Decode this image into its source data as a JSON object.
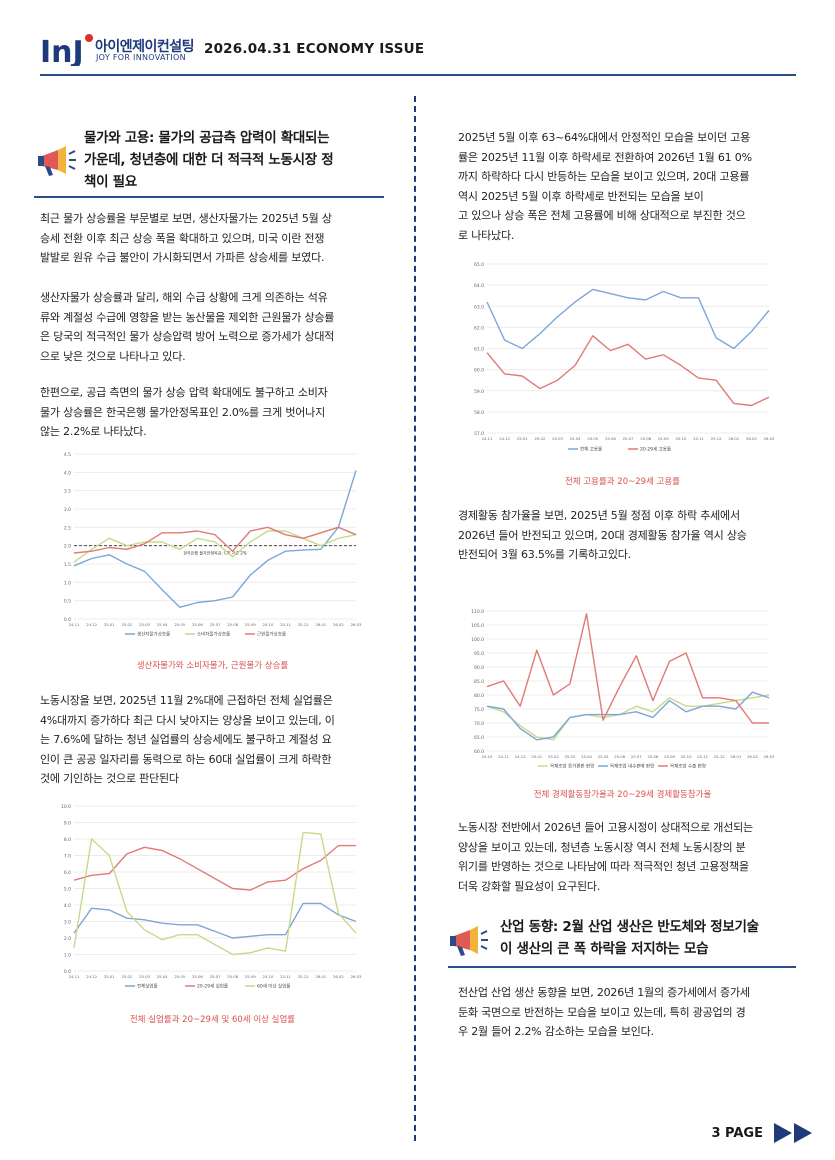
{
  "header": {
    "logo_mark": "InJ",
    "logo_kr": "아이엔제이컨설팅",
    "logo_en": "JOY FOR INNOVATION",
    "issue": "2026.04.31 ECONOMY ISSUE"
  },
  "left": {
    "section_title_lines": [
      "물가와 고용: 물가의 공급측 압력이 확대되는",
      "가운데, 청년층에 대한 더 적극적 노동시장 정",
      "책이 필요"
    ],
    "p1": [
      "최근 물가 상승률을 부문별로 보면, 생산자물가는 2025년 5월 상",
      "승세 전환 이후 최근 상승 폭을 확대하고 있으며, 미국 이란 전쟁",
      "발발로 원유 수급 불안이 가시화되면서 가파른 상승세를 보였다."
    ],
    "p2": [
      "생산자물가 상승률과 달리, 해외 수급 상황에 크게 의존하는 석유",
      "류와 계절성 수급에 영향을 받는 농산물을 제외한 근원물가 상승률",
      "은 당국의 적극적인 물가 상승압력 방어 노력으로 증가세가 상대적",
      "으로 낮은 것으로 나타나고 있다."
    ],
    "p3": [
      "한편으로, 공급 측면의 물가 상승 압력 확대에도 불구하고 소비자",
      "물가 상승률은 한국은행 물가안정목표인 2.0%를 크게 벗어나지",
      "않는 2.2%로 나타났다."
    ],
    "caption1": "생산자물가와 소비자물가, 근원물가 상승률",
    "p4": [
      "노동시장을 보면, 2025년 11월 2%대에 근접하던 전체 실업률은",
      "4%대까지 증가하다 최근 다시 낮아지는 양상을 보이고 있는데, 이",
      "는 7.6%에 달하는 청년 실업률의 상승세에도 불구하고 계절성 요",
      "인이 큰 공공 일자리를 동력으로 하는 60대 실업률이 크게 하락한",
      "것에 기인하는 것으로 판단된다"
    ],
    "caption2": "전체 실업률과 20~29세 및 60세 이상 실업률"
  },
  "right": {
    "p1": [
      "2025년 5월 이후 63~64%대에서 안정적인 모습을 보이던 고용",
      "률은 2025년 11월 이후 하락세로 전환하여 2026년 1월 61 0%",
      "까지 하락하다 다시 반등하는 모습을 보이고 있으며, 20대 고용률",
      "역시 2025년 5월 이후 하락세로 반전되는 모습을 보이",
      "고 있으나 상승 폭은 전체 고용률에 비해 상대적으로 부진한 것으",
      "로 나타났다."
    ],
    "caption3": "전체 고용률과 20~29세 고용률",
    "p2": [
      "경제활동 참가율을 보면, 2025년 5월 정점 이후 하락 추세에서",
      "2026년 들어 반전되고 있으며, 20대 경제활동 참가율 역시 상승",
      "반전되어 3월 63.5%를 기록하고있다."
    ],
    "caption4": "전체 경제활동참가율과 20~29세 경제활동참가율",
    "p3": [
      "노동시장 전반에서 2026년 들어 고용시정이 상대적으로 개선되는",
      "양상을 보이고 있는데, 청년층 노동시장 역시 전체 노동시장의 분",
      "위기를 반영하는 것으로 나타남에 따라 적극적인 청년 고용정책을",
      "더욱 강화할 필요성이 요구된다."
    ],
    "section_title_lines": [
      "산업 동향: 2월 산업 생산은 반도체와 정보기술",
      "이 생산의 큰 폭 하락을 저지하는 모습"
    ],
    "p4": [
      "전산업 산업 생산 동향을 보면, 2026년 1월의 증가세에서 증가세",
      "둔화 국면으로 반전하는 모습을 보이고 있는데, 특히 광공업의 경",
      "우 2월 들어 2.2% 감소하는 모습을 보인다."
    ]
  },
  "footer": {
    "page": "3 PAGE"
  },
  "chart_data": [
    {
      "type": "line",
      "categories": [
        "24.11",
        "24.12",
        "25.01",
        "25.02",
        "25.03",
        "25.04",
        "25.05",
        "25.06",
        "25.07",
        "25.08",
        "25.09",
        "25.10",
        "25.11",
        "25.12",
        "26.01",
        "26.02",
        "26.03"
      ],
      "ylim": [
        0,
        4.5
      ],
      "yticks": [
        "0.0",
        "0.5",
        "1.0",
        "1.5",
        "2.0",
        "2.5",
        "3.0",
        "3.5",
        "4.0",
        "4.5"
      ],
      "target": 2.0,
      "target_label": "한국은행 물가안정목표: CPI 기준 2%",
      "series": [
        {
          "name": "생산자물가상승률",
          "color": "#7ea6d8",
          "values": [
            1.45,
            1.65,
            1.75,
            1.5,
            1.3,
            0.8,
            0.32,
            0.45,
            0.5,
            0.6,
            1.2,
            1.6,
            1.85,
            1.88,
            1.9,
            2.5,
            4.05
          ]
        },
        {
          "name": "소비자물가상승률",
          "color": "#c8d98a",
          "values": [
            1.55,
            1.9,
            2.2,
            2.0,
            2.1,
            2.1,
            1.9,
            2.2,
            2.1,
            1.7,
            2.1,
            2.4,
            2.4,
            2.2,
            2.0,
            2.2,
            2.3
          ]
        },
        {
          "name": "근원물가상승률",
          "color": "#e07a76",
          "values": [
            1.8,
            1.85,
            1.95,
            1.9,
            2.05,
            2.35,
            2.35,
            2.4,
            2.3,
            1.85,
            2.4,
            2.5,
            2.3,
            2.2,
            2.35,
            2.5,
            2.3
          ]
        }
      ]
    },
    {
      "type": "line",
      "categories": [
        "24.11",
        "24.12",
        "25.01",
        "25.02",
        "25.03",
        "25.04",
        "25.05",
        "25.06",
        "25.07",
        "25.08",
        "25.09",
        "25.10",
        "25.11",
        "25.12",
        "26.01",
        "26.02",
        "26.03"
      ],
      "ylim": [
        0,
        10
      ],
      "yticks": [
        "0.0",
        "1.0",
        "2.0",
        "3.0",
        "4.0",
        "5.0",
        "6.0",
        "7.0",
        "8.0",
        "9.0",
        "10.0"
      ],
      "series": [
        {
          "name": "전체실업률",
          "color": "#7ea6d8",
          "values": [
            2.3,
            3.8,
            3.7,
            3.2,
            3.1,
            2.9,
            2.8,
            2.8,
            2.4,
            2.0,
            2.1,
            2.2,
            2.2,
            4.1,
            4.1,
            3.4,
            3.0
          ]
        },
        {
          "name": "20-29세 실업률",
          "color": "#e07a76",
          "values": [
            5.5,
            5.8,
            5.9,
            7.1,
            7.5,
            7.3,
            6.8,
            6.2,
            5.6,
            5.0,
            4.9,
            5.4,
            5.5,
            6.2,
            6.7,
            7.6,
            7.6
          ]
        },
        {
          "name": "60세 이상 실업률",
          "color": "#c8d98a",
          "values": [
            1.4,
            8.0,
            7.0,
            3.6,
            2.5,
            1.9,
            2.2,
            2.2,
            1.6,
            1.0,
            1.1,
            1.4,
            1.2,
            8.4,
            8.3,
            3.5,
            2.3
          ]
        }
      ]
    },
    {
      "type": "line",
      "categories": [
        "24.11",
        "24.12",
        "25.01",
        "25.02",
        "25.03",
        "25.04",
        "25.05",
        "25.06",
        "25.07",
        "25.08",
        "25.09",
        "25.10",
        "25.11",
        "25.12",
        "26.01",
        "26.02",
        "26.03"
      ],
      "ylim": [
        57,
        65
      ],
      "yticks": [
        "57.0",
        "58.0",
        "59.0",
        "60.0",
        "61.0",
        "62.0",
        "63.0",
        "64.0",
        "65.0"
      ],
      "series": [
        {
          "name": "전체 고용률",
          "color": "#7ea6d8",
          "values": [
            63.2,
            61.4,
            61.0,
            61.7,
            62.5,
            63.2,
            63.8,
            63.6,
            63.4,
            63.3,
            63.7,
            63.4,
            63.4,
            61.5,
            61.0,
            61.8,
            62.8
          ]
        },
        {
          "name": "20-29세 고용률",
          "color": "#e07a76",
          "values": [
            60.8,
            59.8,
            59.7,
            59.1,
            59.5,
            60.2,
            61.6,
            60.9,
            61.2,
            60.5,
            60.7,
            60.2,
            59.6,
            59.5,
            58.4,
            58.3,
            58.7
          ]
        }
      ]
    },
    {
      "type": "line",
      "categories": [
        "24.10",
        "24.11",
        "24.12",
        "25.01",
        "25.02",
        "25.03",
        "25.04",
        "25.05",
        "25.06",
        "25.07",
        "25.08",
        "25.09",
        "25.10",
        "25.11",
        "25.12",
        "26.01",
        "26.02",
        "26.03"
      ],
      "ylim": [
        60,
        110
      ],
      "yticks": [
        "60.0",
        "65.0",
        "70.0",
        "75.0",
        "80.0",
        "85.0",
        "90.0",
        "95.0",
        "100.0",
        "105.0",
        "110.0"
      ],
      "series": [
        {
          "name": "목재조업 증가편판 판량",
          "color": "#c8d98a",
          "values": [
            76,
            74,
            69,
            65,
            64,
            72,
            73,
            72,
            73,
            76,
            74,
            79,
            76,
            76,
            77,
            78,
            79,
            80
          ]
        },
        {
          "name": "목재조업 내수판매 판량",
          "color": "#7ea6d8",
          "values": [
            76,
            75,
            68,
            64,
            65,
            72,
            73,
            73,
            73,
            74,
            72,
            78,
            74,
            76,
            76,
            75,
            81,
            79
          ]
        },
        {
          "name": "목재조업 수출 판량",
          "color": "#e07a76",
          "values": [
            83,
            85,
            76,
            96,
            80,
            84,
            109,
            71,
            83,
            94,
            78,
            92,
            95,
            79,
            79,
            78,
            70,
            70
          ]
        }
      ]
    }
  ]
}
